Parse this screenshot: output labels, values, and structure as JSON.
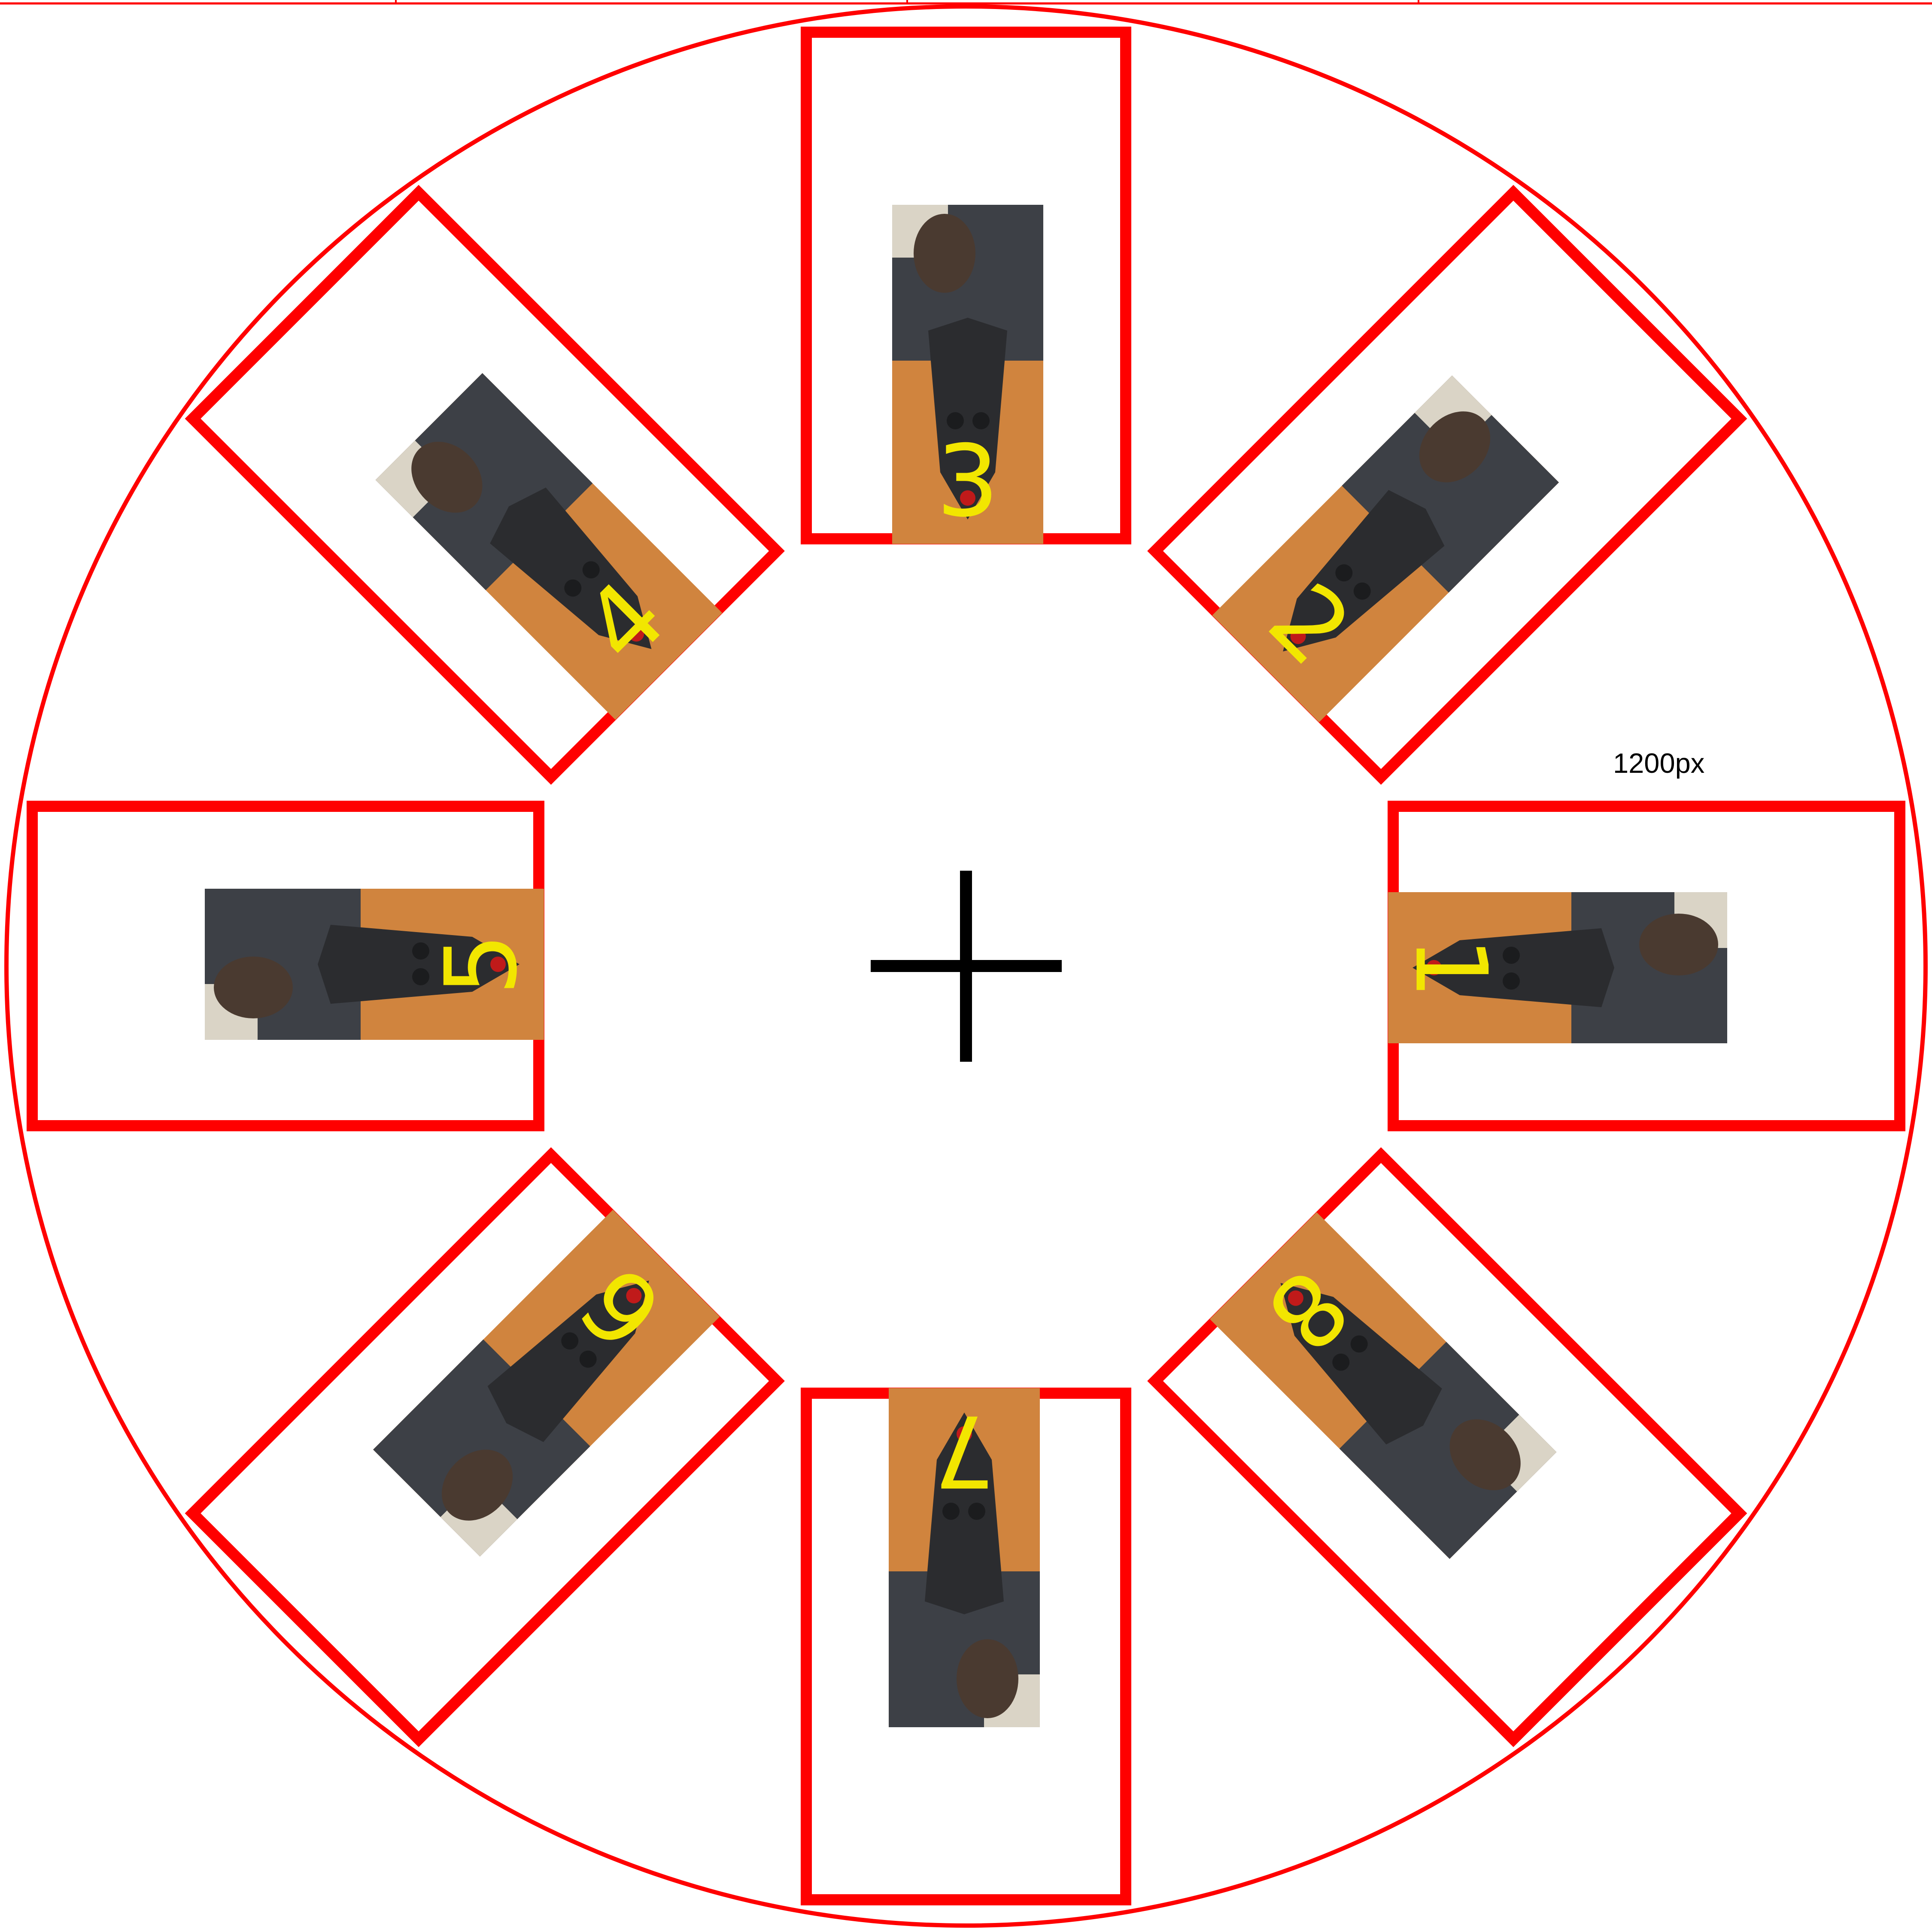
{
  "ruler": {
    "label": "1200px"
  },
  "center_marker": {
    "icon": "crosshair-plus-icon"
  },
  "colors": {
    "frame": "#ff0000",
    "label": "#f2e600",
    "crosshair": "#000000",
    "background": "#ffffff"
  },
  "slots": [
    {
      "number": "1",
      "angle_deg": 0
    },
    {
      "number": "2",
      "angle_deg": 45
    },
    {
      "number": "3",
      "angle_deg": 90
    },
    {
      "number": "4",
      "angle_deg": 135
    },
    {
      "number": "5",
      "angle_deg": 180
    },
    {
      "number": "6",
      "angle_deg": 225
    },
    {
      "number": "7",
      "angle_deg": 270
    },
    {
      "number": "8",
      "angle_deg": 315
    }
  ]
}
